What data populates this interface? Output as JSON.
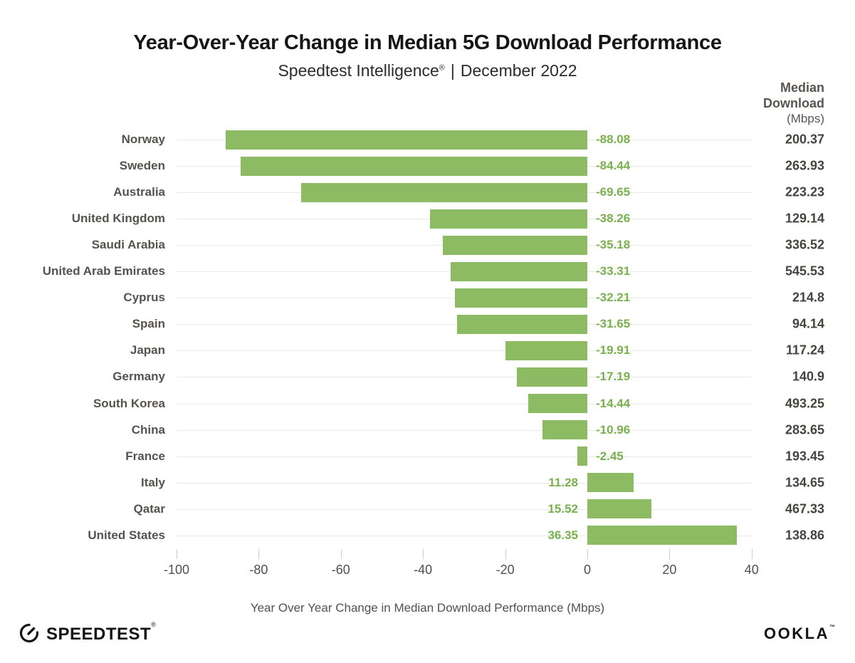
{
  "header": {
    "title": "Year-Over-Year Change in Median 5G Download Performance",
    "subtitle_brand": "Speedtest Intelligence",
    "subtitle_reg": "®",
    "subtitle_sep": "|",
    "subtitle_date": "December 2022"
  },
  "right_column_header": {
    "line1": "Median",
    "line2": "Download",
    "unit": "(Mbps)"
  },
  "chart_data": {
    "type": "bar",
    "orientation": "horizontal",
    "title": "Year-Over-Year Change in Median 5G Download Performance",
    "subtitle": "Speedtest Intelligence® | December 2022",
    "xlabel": "Year Over Year Change in Median Download Performance (Mbps)",
    "xlim": [
      -100,
      40
    ],
    "xticks": [
      -100,
      -80,
      -60,
      -40,
      -20,
      0,
      20,
      40
    ],
    "grid": "horizontal-row-lines",
    "legend": "none",
    "bar_color": "#8cbb63",
    "value_label_color": "#79b14e",
    "categories": [
      "Norway",
      "Sweden",
      "Australia",
      "United Kingdom",
      "Saudi Arabia",
      "United Arab Emirates",
      "Cyprus",
      "Spain",
      "Japan",
      "Germany",
      "South Korea",
      "China",
      "France",
      "Italy",
      "Qatar",
      "United States"
    ],
    "values": [
      -88.08,
      -84.44,
      -69.65,
      -38.26,
      -35.18,
      -33.31,
      -32.21,
      -31.65,
      -19.91,
      -17.19,
      -14.44,
      -10.96,
      -2.45,
      11.28,
      15.52,
      36.35
    ],
    "value_labels": [
      "-88.08",
      "-84.44",
      "-69.65",
      "-38.26",
      "-35.18",
      "-33.31",
      "-32.21",
      "-31.65",
      "-19.91",
      "-17.19",
      "-14.44",
      "-10.96",
      "-2.45",
      "11.28",
      "15.52",
      "36.35"
    ],
    "median_download_mbps": [
      "200.37",
      "263.93",
      "223.23",
      "129.14",
      "336.52",
      "545.53",
      "214.8",
      "94.14",
      "117.24",
      "140.9",
      "493.25",
      "283.65",
      "193.45",
      "134.65",
      "467.33",
      "138.86"
    ]
  },
  "footer": {
    "speedtest_label": "SPEEDTEST",
    "speedtest_mark": "®",
    "ookla_label": "OOKLA",
    "ookla_mark": "™"
  }
}
